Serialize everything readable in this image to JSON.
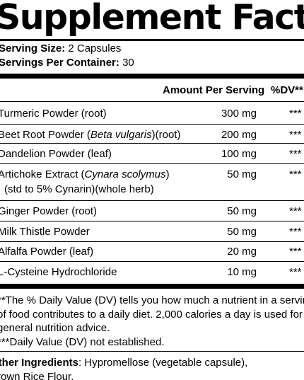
{
  "title": "Supplement Facts",
  "serving_size": {
    "label": "Serving Size:",
    "value": "2 Capsules"
  },
  "servings_per_container": {
    "label": "Servings Per Container:",
    "value": "30"
  },
  "table_header": {
    "amount": "Amount Per Serving",
    "dv": "%DV**"
  },
  "rows": [
    {
      "name": "Turmeric Powder (root)",
      "amount": "300 mg",
      "dv": "***"
    },
    {
      "name_pre": "Beet Root Powder (",
      "name_italic": "Beta vulgaris",
      "name_post": ")(root)",
      "amount": "200 mg",
      "dv": "***"
    },
    {
      "name": "Dandelion Powder (leaf)",
      "amount": "100 mg",
      "dv": "***"
    },
    {
      "name_pre": "Artichoke Extract (",
      "name_italic": "Cynara scolymus",
      "name_post": ")",
      "sub": "(std to 5% Cynarin)(whole herb)",
      "amount": "50 mg",
      "dv": "***"
    },
    {
      "name": "Ginger Powder (root)",
      "amount": "50 mg",
      "dv": "***"
    },
    {
      "name": "Milk Thistle Powder",
      "amount": "50 mg",
      "dv": "***"
    },
    {
      "name": "Alfalfa Powder (leaf)",
      "amount": "20 mg",
      "dv": "***"
    },
    {
      "name": "L-Cysteine Hydrochloride",
      "amount": "10 mg",
      "dv": "***"
    }
  ],
  "footnotes": {
    "dv_line1": "**The % Daily Value (DV) tells you how much a nutrient in a serving",
    "dv_line2": "of food contributes to a daily diet. 2,000 calories a day is used for",
    "dv_line3": "general nutrition advice.",
    "not_established": "***Daily Value (DV) not established."
  },
  "other_ingredients": {
    "label": "Other Ingredients",
    "line1": ": Hypromellose (vegetable capsule),",
    "line2": "Brown Rice Flour."
  }
}
